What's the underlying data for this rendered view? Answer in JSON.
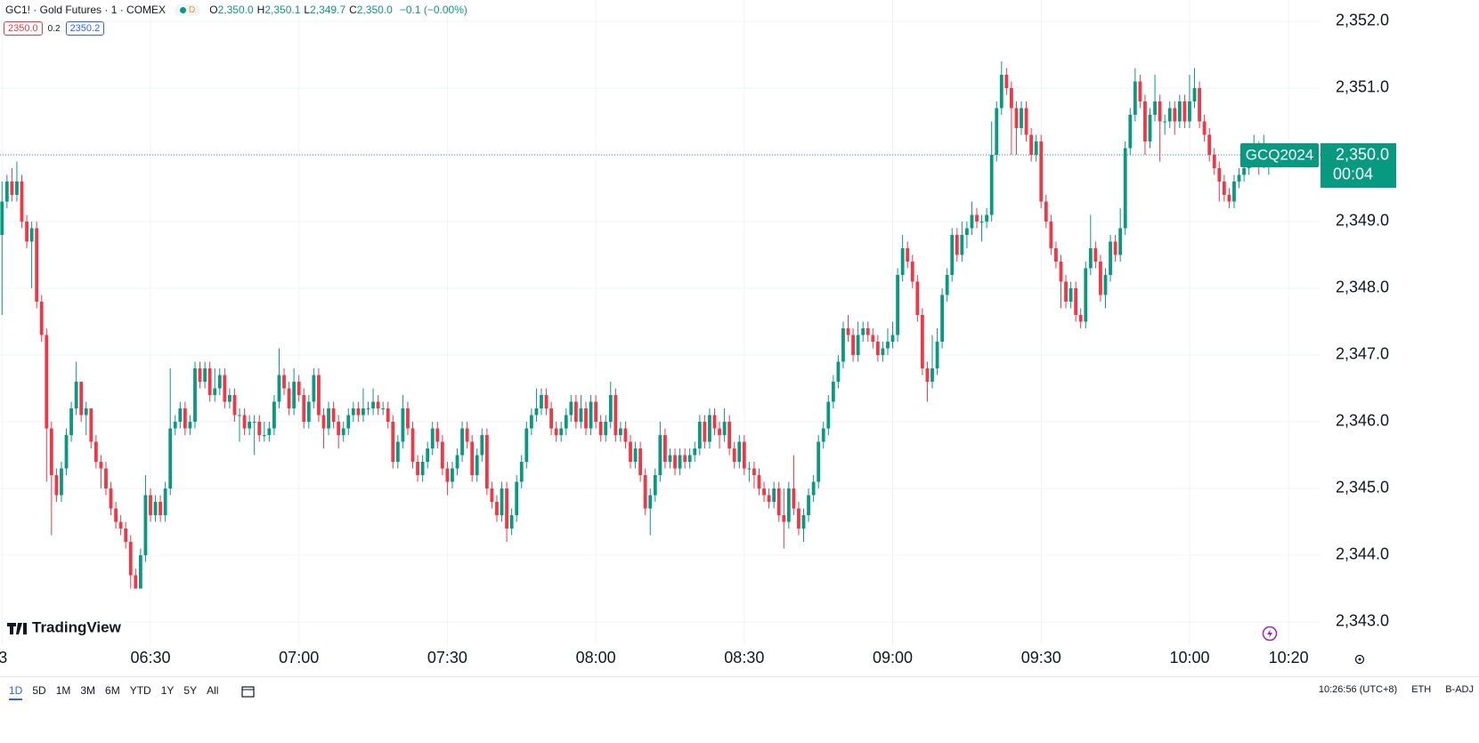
{
  "header": {
    "symbol": "GC1! · Gold Futures · 1 · COMEX",
    "market_status": "D",
    "ohlc_labels": [
      {
        "key": "O",
        "value": "2,350.0"
      },
      {
        "key": "H",
        "value": "2,350.1"
      },
      {
        "key": "L",
        "value": "2,349.7"
      },
      {
        "key": "C",
        "value": "2,350.0"
      }
    ],
    "change": "−0.1 (−0.00%)",
    "bid": "2350.0",
    "spread": "0.2",
    "ask": "2350.2"
  },
  "chart_data": {
    "type": "candlestick",
    "up_color": "#089981",
    "down_color": "#f23645",
    "open": [
      2348.8,
      2349.3,
      2349.6,
      2349.4,
      2349.6,
      2349.0,
      2348.7,
      2348.9,
      2347.8,
      2347.3,
      2345.9,
      2345.2,
      2344.9,
      2345.3,
      2345.8,
      2346.2,
      2346.6,
      2346.1,
      2346.2,
      2345.7,
      2345.4,
      2345.3,
      2345.0,
      2344.7,
      2344.5,
      2344.4,
      2344.2,
      2343.7,
      2343.5,
      2344.0,
      2344.9,
      2344.6,
      2344.8,
      2344.6,
      2345.0,
      2345.9,
      2346.0,
      2346.2,
      2345.9,
      2346.0,
      2346.8,
      2346.6,
      2346.8,
      2346.4,
      2346.5,
      2346.7,
      2346.3,
      2346.4,
      2346.1,
      2346.1,
      2345.9,
      2346.0,
      2346.0,
      2345.8,
      2345.8,
      2345.9,
      2346.3,
      2346.7,
      2346.5,
      2346.2,
      2346.6,
      2346.4,
      2346.0,
      2346.3,
      2346.7,
      2346.1,
      2345.9,
      2346.2,
      2346.0,
      2345.8,
      2345.9,
      2346.1,
      2346.2,
      2346.1,
      2346.2,
      2346.2,
      2346.3,
      2346.2,
      2346.2,
      2346.0,
      2345.4,
      2345.7,
      2346.2,
      2345.9,
      2345.4,
      2345.2,
      2345.4,
      2345.6,
      2345.9,
      2345.7,
      2345.3,
      2345.1,
      2345.3,
      2345.5,
      2345.9,
      2345.7,
      2345.2,
      2345.5,
      2345.8,
      2345.0,
      2344.8,
      2344.6,
      2345.0,
      2344.4,
      2344.6,
      2345.1,
      2345.4,
      2345.9,
      2346.1,
      2346.2,
      2346.4,
      2346.2,
      2345.9,
      2345.8,
      2345.9,
      2346.1,
      2346.3,
      2346.0,
      2346.2,
      2345.9,
      2346.3,
      2346.0,
      2345.8,
      2346.0,
      2346.4,
      2345.8,
      2345.9,
      2345.7,
      2345.4,
      2345.6,
      2345.2,
      2344.7,
      2344.9,
      2345.2,
      2345.8,
      2345.4,
      2345.5,
      2345.3,
      2345.5,
      2345.4,
      2345.5,
      2345.6,
      2346.0,
      2345.7,
      2346.1,
      2345.9,
      2345.8,
      2346.0,
      2345.6,
      2345.4,
      2345.7,
      2345.3,
      2345.3,
      2345.2,
      2345.0,
      2344.9,
      2344.8,
      2345.0,
      2344.6,
      2344.5,
      2345.0,
      2344.7,
      2344.4,
      2344.6,
      2344.9,
      2345.1,
      2345.7,
      2345.9,
      2346.3,
      2346.6,
      2346.9,
      2347.4,
      2347.3,
      2347.0,
      2347.3,
      2347.4,
      2347.3,
      2347.2,
      2347.0,
      2347.1,
      2347.2,
      2347.3,
      2348.2,
      2348.6,
      2348.4,
      2348.1,
      2347.6,
      2346.8,
      2346.6,
      2346.8,
      2347.2,
      2347.9,
      2348.2,
      2348.8,
      2348.5,
      2348.8,
      2348.9,
      2349.1,
      2349.0,
      2349.0,
      2349.1,
      2350.0,
      2350.7,
      2351.2,
      2351.0,
      2350.7,
      2350.4,
      2350.7,
      2350.3,
      2350.0,
      2350.2,
      2349.3,
      2349.0,
      2348.6,
      2348.4,
      2348.1,
      2347.8,
      2348.0,
      2347.6,
      2347.5,
      2348.3,
      2348.6,
      2348.4,
      2347.9,
      2348.2,
      2348.7,
      2348.5,
      2348.9,
      2350.1,
      2350.6,
      2351.1,
      2350.8,
      2350.2,
      2350.6,
      2350.8,
      2350.5,
      2350.5,
      2350.7,
      2350.5,
      2350.8,
      2350.5,
      2350.8,
      2351.0,
      2350.5,
      2350.3,
      2350.0,
      2349.8,
      2349.6,
      2349.4,
      2349.3,
      2349.6,
      2349.7,
      2349.8,
      2350.0,
      2350.1,
      2349.9,
      2350.0
    ],
    "high": [
      2349.6,
      2349.7,
      2349.8,
      2349.9,
      2349.7,
      2349.1,
      2349.0,
      2349.0,
      2347.9,
      2347.4,
      2346.0,
      2345.3,
      2345.4,
      2345.9,
      2346.3,
      2346.9,
      2346.6,
      2346.3,
      2346.2,
      2345.8,
      2345.5,
      2345.4,
      2345.1,
      2344.8,
      2344.6,
      2344.5,
      2344.3,
      2343.8,
      2344.1,
      2345.2,
      2345.0,
      2344.9,
      2344.9,
      2345.1,
      2346.8,
      2346.1,
      2346.3,
      2346.3,
      2346.1,
      2346.9,
      2346.9,
      2346.9,
      2346.9,
      2346.8,
      2346.8,
      2346.8,
      2346.5,
      2346.5,
      2346.2,
      2346.2,
      2346.1,
      2346.1,
      2346.1,
      2346.0,
      2346.0,
      2346.4,
      2347.1,
      2346.8,
      2346.6,
      2346.8,
      2346.7,
      2346.5,
      2346.4,
      2346.8,
      2346.8,
      2346.2,
      2346.3,
      2346.3,
      2346.1,
      2346.0,
      2346.2,
      2346.3,
      2346.3,
      2346.5,
      2346.3,
      2346.5,
      2346.4,
      2346.3,
      2346.3,
      2346.1,
      2345.8,
      2346.4,
      2346.3,
      2346.0,
      2345.5,
      2345.5,
      2345.7,
      2346.0,
      2346.0,
      2345.8,
      2345.4,
      2345.4,
      2345.6,
      2346.0,
      2346.0,
      2345.8,
      2345.6,
      2345.9,
      2345.9,
      2345.1,
      2344.9,
      2345.1,
      2345.1,
      2344.7,
      2345.2,
      2345.5,
      2346.0,
      2346.2,
      2346.5,
      2346.5,
      2346.5,
      2346.3,
      2346.0,
      2346.0,
      2346.2,
      2346.4,
      2346.4,
      2346.4,
      2346.3,
      2346.4,
      2346.4,
      2346.1,
      2346.1,
      2346.6,
      2346.5,
      2346.0,
      2346.0,
      2345.8,
      2345.7,
      2345.7,
      2345.3,
      2345.0,
      2345.3,
      2346.0,
      2345.9,
      2345.6,
      2345.6,
      2345.6,
      2345.6,
      2345.6,
      2345.7,
      2346.1,
      2346.1,
      2346.2,
      2346.2,
      2346.0,
      2346.2,
      2346.1,
      2345.7,
      2345.8,
      2345.8,
      2345.4,
      2345.4,
      2345.3,
      2345.1,
      2345.0,
      2345.1,
      2345.1,
      2345.0,
      2345.1,
      2345.5,
      2344.8,
      2344.7,
      2345.0,
      2345.2,
      2345.8,
      2346.0,
      2346.4,
      2346.7,
      2347.0,
      2347.5,
      2347.6,
      2347.4,
      2347.5,
      2347.5,
      2347.5,
      2347.4,
      2347.3,
      2347.2,
      2347.4,
      2347.5,
      2348.3,
      2348.8,
      2348.7,
      2348.5,
      2348.2,
      2347.7,
      2346.9,
      2347.3,
      2347.4,
      2348.0,
      2348.3,
      2348.9,
      2348.9,
      2349.0,
      2349.0,
      2349.3,
      2349.2,
      2349.1,
      2349.2,
      2350.5,
      2350.8,
      2351.4,
      2351.3,
      2351.1,
      2350.8,
      2350.8,
      2350.8,
      2350.4,
      2350.3,
      2350.3,
      2349.4,
      2349.1,
      2348.7,
      2348.5,
      2348.2,
      2348.1,
      2348.1,
      2347.7,
      2348.4,
      2349.1,
      2348.7,
      2348.5,
      2348.3,
      2348.8,
      2348.8,
      2349.2,
      2350.2,
      2350.7,
      2351.3,
      2351.2,
      2350.9,
      2350.7,
      2351.2,
      2350.9,
      2350.6,
      2350.8,
      2350.8,
      2350.9,
      2350.9,
      2351.2,
      2351.3,
      2351.1,
      2350.6,
      2350.4,
      2350.1,
      2349.9,
      2349.7,
      2349.5,
      2349.7,
      2349.8,
      2349.9,
      2350.1,
      2350.3,
      2350.2,
      2350.3,
      2350.1
    ],
    "low": [
      2347.6,
      2349.2,
      2349.3,
      2349.3,
      2348.9,
      2348.6,
      2348.0,
      2347.7,
      2347.2,
      2345.1,
      2344.3,
      2344.8,
      2344.8,
      2345.2,
      2345.7,
      2346.1,
      2346.0,
      2345.8,
      2345.6,
      2345.3,
      2345.0,
      2344.9,
      2344.6,
      2344.4,
      2344.3,
      2344.1,
      2343.5,
      2343.5,
      2343.5,
      2343.9,
      2344.5,
      2344.5,
      2344.5,
      2344.5,
      2344.9,
      2345.8,
      2345.9,
      2345.8,
      2345.8,
      2345.9,
      2346.5,
      2346.5,
      2346.3,
      2346.3,
      2346.4,
      2346.2,
      2346.2,
      2346.0,
      2345.7,
      2345.8,
      2345.8,
      2345.5,
      2345.7,
      2345.7,
      2345.7,
      2345.8,
      2346.2,
      2346.4,
      2346.1,
      2346.1,
      2346.3,
      2345.9,
      2345.9,
      2346.2,
      2346.0,
      2345.6,
      2345.8,
      2345.9,
      2345.6,
      2345.7,
      2345.8,
      2346.0,
      2346.0,
      2346.0,
      2346.1,
      2346.1,
      2346.1,
      2346.1,
      2345.9,
      2345.3,
      2345.3,
      2345.6,
      2345.8,
      2345.3,
      2345.1,
      2345.1,
      2345.3,
      2345.5,
      2345.6,
      2345.2,
      2344.9,
      2345.0,
      2345.2,
      2345.4,
      2345.6,
      2345.1,
      2345.1,
      2345.4,
      2344.9,
      2344.7,
      2344.5,
      2344.5,
      2344.2,
      2344.3,
      2344.5,
      2345.0,
      2345.3,
      2345.8,
      2346.0,
      2346.1,
      2346.1,
      2345.8,
      2345.7,
      2345.7,
      2345.8,
      2346.0,
      2345.9,
      2345.9,
      2345.8,
      2345.8,
      2345.9,
      2345.7,
      2345.7,
      2345.9,
      2345.7,
      2345.7,
      2345.6,
      2345.3,
      2345.3,
      2345.1,
      2344.6,
      2344.3,
      2344.8,
      2345.1,
      2345.3,
      2345.3,
      2345.2,
      2345.2,
      2345.3,
      2345.3,
      2345.4,
      2345.5,
      2345.6,
      2345.6,
      2345.8,
      2345.6,
      2345.7,
      2345.5,
      2345.3,
      2345.3,
      2345.2,
      2345.1,
      2345.0,
      2344.9,
      2344.8,
      2344.7,
      2344.7,
      2344.5,
      2344.1,
      2344.4,
      2344.6,
      2344.3,
      2344.2,
      2344.5,
      2344.8,
      2345.0,
      2345.6,
      2345.8,
      2346.2,
      2346.5,
      2346.8,
      2347.2,
      2346.9,
      2346.9,
      2347.2,
      2347.2,
      2347.1,
      2346.9,
      2346.9,
      2347.0,
      2347.1,
      2347.2,
      2348.1,
      2348.3,
      2348.0,
      2347.5,
      2346.7,
      2346.3,
      2346.5,
      2346.7,
      2347.1,
      2347.8,
      2348.1,
      2348.4,
      2348.4,
      2348.6,
      2348.8,
      2348.9,
      2348.7,
      2348.9,
      2349.0,
      2349.9,
      2350.6,
      2350.9,
      2350.0,
      2350.0,
      2350.3,
      2350.2,
      2349.9,
      2349.9,
      2349.2,
      2348.9,
      2348.5,
      2348.3,
      2347.7,
      2347.7,
      2347.7,
      2347.5,
      2347.4,
      2347.4,
      2348.2,
      2348.3,
      2347.8,
      2347.7,
      2348.1,
      2348.4,
      2348.4,
      2348.8,
      2350.0,
      2350.5,
      2350.7,
      2350.0,
      2350.1,
      2350.5,
      2349.9,
      2350.3,
      2350.4,
      2350.3,
      2350.4,
      2350.4,
      2350.4,
      2350.7,
      2350.4,
      2350.2,
      2349.9,
      2349.7,
      2349.3,
      2349.3,
      2349.2,
      2349.2,
      2349.5,
      2349.6,
      2349.7,
      2349.9,
      2349.7,
      2349.8,
      2349.7
    ],
    "close": [
      2349.3,
      2349.6,
      2349.4,
      2349.6,
      2349.0,
      2348.7,
      2348.9,
      2347.8,
      2347.3,
      2345.9,
      2345.2,
      2344.9,
      2345.3,
      2345.8,
      2346.2,
      2346.6,
      2346.1,
      2346.2,
      2345.7,
      2345.4,
      2345.3,
      2345.0,
      2344.7,
      2344.5,
      2344.4,
      2344.2,
      2343.7,
      2343.5,
      2344.0,
      2344.9,
      2344.6,
      2344.8,
      2344.6,
      2345.0,
      2345.9,
      2346.0,
      2346.2,
      2345.9,
      2346.0,
      2346.8,
      2346.6,
      2346.8,
      2346.4,
      2346.5,
      2346.7,
      2346.3,
      2346.4,
      2346.1,
      2346.1,
      2345.9,
      2346.0,
      2346.0,
      2345.8,
      2345.8,
      2345.9,
      2346.3,
      2346.7,
      2346.5,
      2346.2,
      2346.6,
      2346.4,
      2346.0,
      2346.3,
      2346.7,
      2346.1,
      2345.9,
      2346.2,
      2346.0,
      2345.8,
      2345.9,
      2346.1,
      2346.2,
      2346.1,
      2346.2,
      2346.2,
      2346.3,
      2346.2,
      2346.2,
      2346.0,
      2345.4,
      2345.7,
      2346.2,
      2345.9,
      2345.4,
      2345.2,
      2345.4,
      2345.6,
      2345.9,
      2345.7,
      2345.3,
      2345.1,
      2345.3,
      2345.5,
      2345.9,
      2345.7,
      2345.2,
      2345.5,
      2345.8,
      2345.0,
      2344.8,
      2344.6,
      2345.0,
      2344.4,
      2344.6,
      2345.1,
      2345.4,
      2345.9,
      2346.1,
      2346.2,
      2346.4,
      2346.2,
      2345.9,
      2345.8,
      2345.9,
      2346.1,
      2346.3,
      2346.0,
      2346.2,
      2345.9,
      2346.3,
      2346.0,
      2345.8,
      2346.0,
      2346.4,
      2345.8,
      2345.9,
      2345.7,
      2345.4,
      2345.6,
      2345.2,
      2344.7,
      2344.9,
      2345.2,
      2345.8,
      2345.4,
      2345.5,
      2345.3,
      2345.5,
      2345.4,
      2345.5,
      2345.6,
      2346.0,
      2345.7,
      2346.1,
      2345.9,
      2345.8,
      2346.0,
      2345.6,
      2345.4,
      2345.7,
      2345.3,
      2345.3,
      2345.2,
      2345.0,
      2344.9,
      2344.8,
      2345.0,
      2344.6,
      2344.5,
      2345.0,
      2344.7,
      2344.4,
      2344.6,
      2344.9,
      2345.1,
      2345.7,
      2345.9,
      2346.3,
      2346.6,
      2346.9,
      2347.4,
      2347.3,
      2347.0,
      2347.3,
      2347.4,
      2347.3,
      2347.2,
      2347.0,
      2347.1,
      2347.2,
      2347.3,
      2348.2,
      2348.6,
      2348.4,
      2348.1,
      2347.6,
      2346.8,
      2346.6,
      2346.8,
      2347.2,
      2347.9,
      2348.2,
      2348.8,
      2348.5,
      2348.8,
      2348.9,
      2349.1,
      2349.0,
      2349.0,
      2349.1,
      2350.0,
      2350.7,
      2351.2,
      2351.0,
      2350.7,
      2350.4,
      2350.7,
      2350.3,
      2350.0,
      2350.2,
      2349.3,
      2349.0,
      2348.6,
      2348.4,
      2348.1,
      2347.8,
      2348.0,
      2347.6,
      2347.5,
      2348.3,
      2348.6,
      2348.4,
      2347.9,
      2348.2,
      2348.7,
      2348.5,
      2348.9,
      2350.1,
      2350.6,
      2351.1,
      2350.8,
      2350.2,
      2350.6,
      2350.8,
      2350.5,
      2350.5,
      2350.7,
      2350.5,
      2350.8,
      2350.5,
      2350.8,
      2351.0,
      2350.5,
      2350.3,
      2350.0,
      2349.8,
      2349.6,
      2349.4,
      2349.3,
      2349.6,
      2349.7,
      2349.8,
      2350.0,
      2350.1,
      2349.9,
      2350.0,
      2350.0
    ],
    "xlim": [
      -0.41,
      266.46
    ],
    "xticks": [
      {
        "value": 0,
        "label": "3"
      },
      {
        "value": 30,
        "label": "06:30"
      },
      {
        "value": 60,
        "label": "07:00"
      },
      {
        "value": 90,
        "label": "07:30"
      },
      {
        "value": 120,
        "label": "08:00"
      },
      {
        "value": 150,
        "label": "08:30"
      },
      {
        "value": 180,
        "label": "09:00"
      },
      {
        "value": 210,
        "label": "09:30"
      },
      {
        "value": 240,
        "label": "10:00"
      },
      {
        "value": 260,
        "label": "10:20"
      }
    ],
    "ylim": [
      2342.653,
      2352.32
    ],
    "yticks": [
      {
        "value": 2343,
        "label": "2,343.0"
      },
      {
        "value": 2344,
        "label": "2,344.0"
      },
      {
        "value": 2345,
        "label": "2,345.0"
      },
      {
        "value": 2346,
        "label": "2,346.0"
      },
      {
        "value": 2347,
        "label": "2,347.0"
      },
      {
        "value": 2348,
        "label": "2,348.0"
      },
      {
        "value": 2349,
        "label": "2,349.0"
      },
      {
        "value": 2350,
        "label": "2,350.0"
      },
      {
        "value": 2351,
        "label": "2,351.0"
      },
      {
        "value": 2352,
        "label": "2,352.0"
      }
    ],
    "grid": true,
    "last_price": {
      "symbol": "GCQ2024",
      "label": "2,350.0",
      "countdown": "00:04"
    },
    "watermark": "TradingView"
  },
  "toolbar": {
    "ranges": [
      "1D",
      "5D",
      "1M",
      "3M",
      "6M",
      "YTD",
      "1Y",
      "5Y",
      "All"
    ],
    "active": 0,
    "clock": "10:26:56 (UTC+8)",
    "session": "ETH",
    "adjust": "B-ADJ"
  }
}
